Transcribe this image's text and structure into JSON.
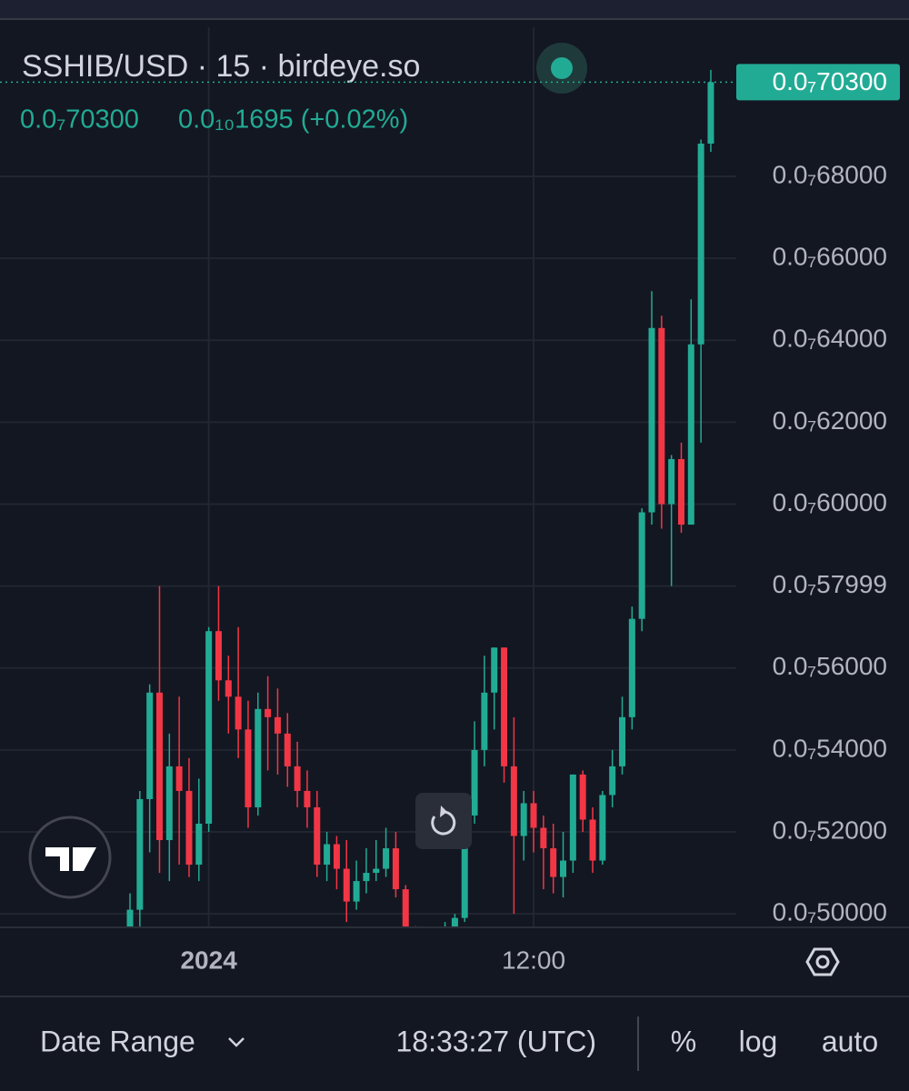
{
  "header": {
    "title": "SSHIB/USD · 15 · birdeye.so",
    "last": "0.0₇70300",
    "change": "0.0₁₀1695 (+0.02%)"
  },
  "chart_data": {
    "type": "candlestick",
    "categories": [
      null,
      null,
      null,
      null,
      null,
      null,
      null,
      null,
      "2024",
      null,
      null,
      null,
      null,
      null,
      null,
      null,
      null,
      null,
      null,
      null,
      null,
      null,
      null,
      null,
      null,
      null,
      null,
      null,
      null,
      null,
      null,
      null,
      null,
      null,
      null,
      null,
      null,
      null,
      null,
      null,
      null,
      "12:00",
      null,
      null,
      null,
      null,
      null,
      null,
      null,
      null,
      null,
      null,
      null,
      null,
      null,
      null,
      null,
      null,
      null,
      null
    ],
    "open": [
      4.96e-08,
      5.01e-08,
      5.28e-08,
      5.54e-08,
      5.18e-08,
      5.36e-08,
      5.3e-08,
      5.12e-08,
      5.22e-08,
      5.69e-08,
      5.57e-08,
      5.53e-08,
      5.45e-08,
      5.26e-08,
      5.5e-08,
      5.48e-08,
      5.44e-08,
      5.36e-08,
      5.3e-08,
      5.26e-08,
      5.12e-08,
      5.17e-08,
      5.11e-08,
      5.03e-08,
      5.08e-08,
      5.1e-08,
      5.11e-08,
      5.16e-08,
      5.06e-08,
      4.95e-08,
      4.92e-08,
      4.91e-08,
      4.93e-08,
      4.96e-08,
      4.99e-08,
      5.24e-08,
      5.4e-08,
      5.54e-08,
      5.65e-08,
      5.36e-08,
      5.19e-08,
      5.27e-08,
      5.21e-08,
      5.16e-08,
      5.09e-08,
      5.13e-08,
      5.34e-08,
      5.23e-08,
      5.13e-08,
      5.29e-08,
      5.36e-08,
      5.48e-08,
      5.72e-08,
      5.98e-08,
      6.43e-08,
      6e-08,
      6.11e-08,
      5.95e-08,
      6.39e-08,
      6.88e-08
    ],
    "high": [
      5.05e-08,
      5.3e-08,
      5.56e-08,
      5.8e-08,
      5.44e-08,
      5.53e-08,
      5.38e-08,
      5.33e-08,
      5.7e-08,
      5.8e-08,
      5.63e-08,
      5.7e-08,
      5.52e-08,
      5.54e-08,
      5.58e-08,
      5.55e-08,
      5.49e-08,
      5.42e-08,
      5.35e-08,
      5.3e-08,
      5.2e-08,
      5.19e-08,
      5.18e-08,
      5.13e-08,
      5.16e-08,
      5.18e-08,
      5.21e-08,
      5.2e-08,
      5.07e-08,
      4.97e-08,
      4.95e-08,
      4.96e-08,
      4.98e-08,
      5e-08,
      5.27e-08,
      5.47e-08,
      5.63e-08,
      5.65e-08,
      5.65e-08,
      5.48e-08,
      5.3e-08,
      5.3e-08,
      5.24e-08,
      5.22e-08,
      5.2e-08,
      5.34e-08,
      5.35e-08,
      5.26e-08,
      5.3e-08,
      5.4e-08,
      5.53e-08,
      5.75e-08,
      5.99e-08,
      6.52e-08,
      6.46e-08,
      6.12e-08,
      6.15e-08,
      6.5e-08,
      6.89e-08,
      7.06e-08
    ],
    "low": [
      4.93e-08,
      4.95e-08,
      5.15e-08,
      5.1e-08,
      5.08e-08,
      5.12e-08,
      5.09e-08,
      5.08e-08,
      5.2e-08,
      5.52e-08,
      5.44e-08,
      5.38e-08,
      5.21e-08,
      5.24e-08,
      5.35e-08,
      5.34e-08,
      5.31e-08,
      5.26e-08,
      5.21e-08,
      5.09e-08,
      5.08e-08,
      5.06e-08,
      4.98e-08,
      5.01e-08,
      5.05e-08,
      5.08e-08,
      5.09e-08,
      5.04e-08,
      4.9e-08,
      4.88e-08,
      4.87e-08,
      4.89e-08,
      4.9e-08,
      4.94e-08,
      4.98e-08,
      5.22e-08,
      5.36e-08,
      5.45e-08,
      5.32e-08,
      5e-08,
      5.13e-08,
      5.15e-08,
      5.06e-08,
      5.05e-08,
      5.04e-08,
      5.1e-08,
      5.2e-08,
      5.1e-08,
      5.12e-08,
      5.26e-08,
      5.34e-08,
      5.45e-08,
      5.69e-08,
      5.95e-08,
      5.94e-08,
      5.8e-08,
      5.93e-08,
      5.95e-08,
      6.15e-08,
      6.86e-08
    ],
    "close": [
      5.01e-08,
      5.28e-08,
      5.54e-08,
      5.18e-08,
      5.36e-08,
      5.3e-08,
      5.12e-08,
      5.22e-08,
      5.69e-08,
      5.57e-08,
      5.53e-08,
      5.45e-08,
      5.26e-08,
      5.5e-08,
      5.48e-08,
      5.44e-08,
      5.36e-08,
      5.3e-08,
      5.26e-08,
      5.12e-08,
      5.17e-08,
      5.11e-08,
      5.03e-08,
      5.08e-08,
      5.1e-08,
      5.11e-08,
      5.16e-08,
      5.06e-08,
      4.95e-08,
      4.92e-08,
      4.91e-08,
      4.93e-08,
      4.96e-08,
      4.99e-08,
      5.24e-08,
      5.4e-08,
      5.54e-08,
      5.65e-08,
      5.36e-08,
      5.19e-08,
      5.27e-08,
      5.21e-08,
      5.16e-08,
      5.09e-08,
      5.13e-08,
      5.34e-08,
      5.23e-08,
      5.13e-08,
      5.29e-08,
      5.36e-08,
      5.48e-08,
      5.72e-08,
      5.98e-08,
      6.43e-08,
      6e-08,
      6.11e-08,
      5.95e-08,
      6.39e-08,
      6.88e-08,
      7.03e-08
    ],
    "up_color": "#22ab94",
    "down_color": "#f23645",
    "ylim": [
      4.967e-08,
      7.164e-08
    ],
    "yticks": [
      {
        "value": 5e-08,
        "label": "0.0₇50000"
      },
      {
        "value": 5.2e-08,
        "label": "0.0₇52000"
      },
      {
        "value": 5.4e-08,
        "label": "0.0₇54000"
      },
      {
        "value": 5.6e-08,
        "label": "0.0₇56000"
      },
      {
        "value": 5.7999e-08,
        "label": "0.0₇57999"
      },
      {
        "value": 6e-08,
        "label": "0.0₇60000"
      },
      {
        "value": 6.2e-08,
        "label": "0.0₇62000"
      },
      {
        "value": 6.4e-08,
        "label": "0.0₇64000"
      },
      {
        "value": 6.6e-08,
        "label": "0.0₇66000"
      },
      {
        "value": 6.8e-08,
        "label": "0.0₇68000"
      }
    ],
    "last_price": {
      "value": 7.03e-08,
      "label": "0.0₇70300"
    },
    "grid": true,
    "log_scale": false
  },
  "toolbar": {
    "date_range": "Date Range",
    "time": "18:33:27 (UTC)",
    "percent": "%",
    "log": "log",
    "auto": "auto"
  }
}
